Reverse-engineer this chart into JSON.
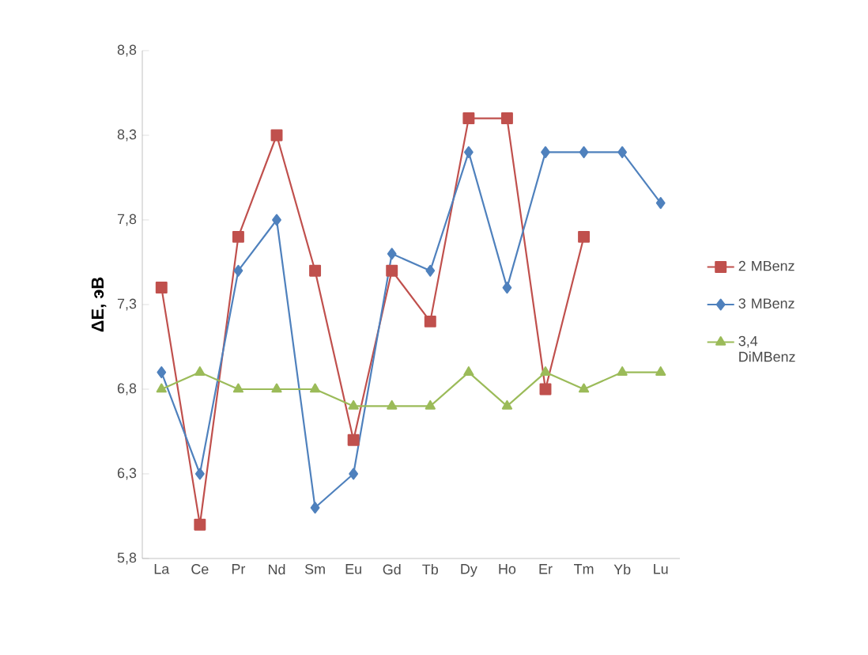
{
  "chart_data": {
    "type": "line",
    "ylabel": "ΔE, эВ",
    "categories": [
      "La",
      "Ce",
      "Pr",
      "Nd",
      "Sm",
      "Eu",
      "Gd",
      "Tb",
      "Dy",
      "Ho",
      "Er",
      "Tm",
      "Yb",
      "Lu"
    ],
    "series": [
      {
        "name": "2 MBenz",
        "color": "#c0504d",
        "marker": "square",
        "values": [
          7.4,
          6.0,
          7.7,
          8.3,
          7.5,
          6.5,
          7.5,
          7.2,
          8.4,
          8.4,
          6.8,
          7.7,
          null,
          null
        ]
      },
      {
        "name": "3 MBenz",
        "color": "#4f81bd",
        "marker": "diamond",
        "values": [
          6.9,
          6.3,
          7.5,
          7.8,
          6.1,
          6.3,
          7.6,
          7.5,
          8.2,
          7.4,
          8.2,
          8.2,
          8.2,
          7.9
        ]
      },
      {
        "name": "3,4 DiMBenz",
        "color": "#9bbb59",
        "marker": "triangle",
        "values": [
          6.8,
          6.9,
          6.8,
          6.8,
          6.8,
          6.7,
          6.7,
          6.7,
          6.9,
          6.7,
          6.9,
          6.8,
          6.9,
          6.9
        ]
      }
    ],
    "ylim": [
      5.8,
      8.8
    ],
    "yticks": [
      {
        "value": 5.8,
        "label": "5,8"
      },
      {
        "value": 6.3,
        "label": "6,3"
      },
      {
        "value": 6.8,
        "label": "6,8"
      },
      {
        "value": 7.3,
        "label": "7,3"
      },
      {
        "value": 7.8,
        "label": "7,8"
      },
      {
        "value": 8.3,
        "label": "8,3"
      },
      {
        "value": 8.8,
        "label": "8,8"
      }
    ],
    "grid": false,
    "legend": "right",
    "line_style": "solid"
  }
}
